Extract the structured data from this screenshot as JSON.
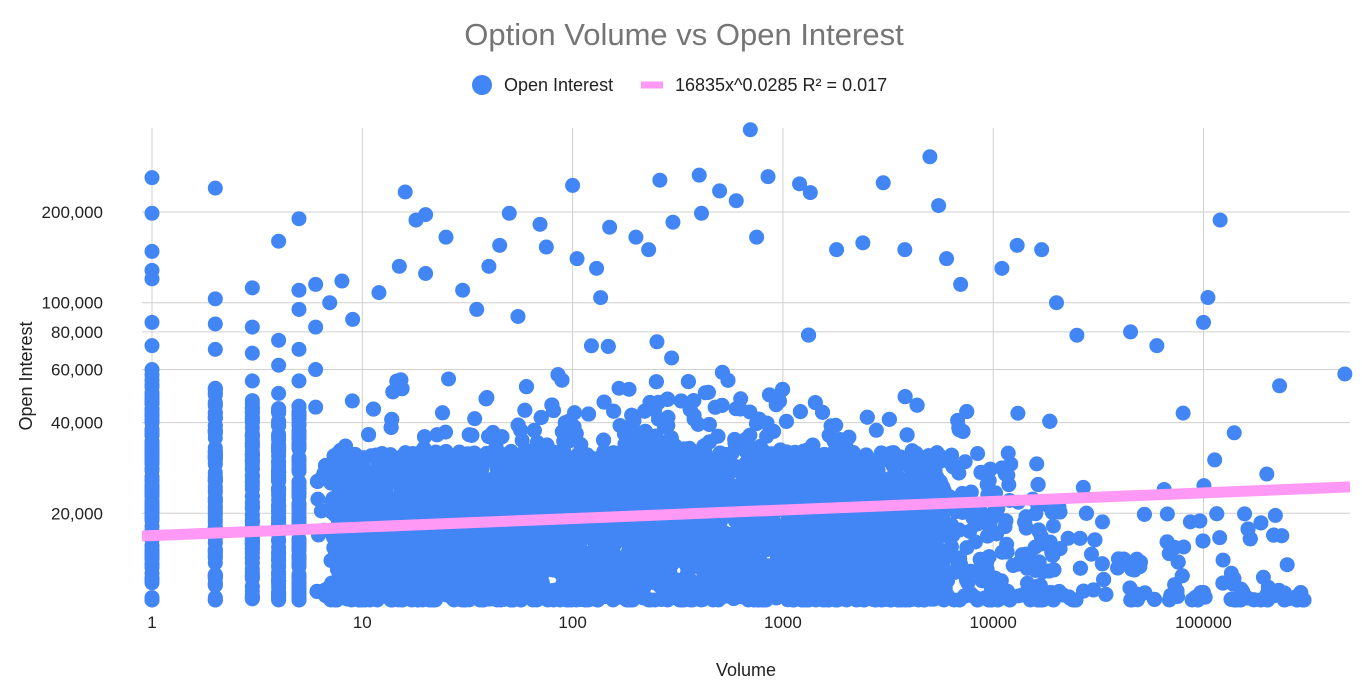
{
  "chart_data": {
    "type": "scatter",
    "title": "Option Volume vs Open Interest",
    "xlabel": "Volume",
    "ylabel": "Open Interest",
    "x_scale": "log",
    "y_scale": "log",
    "xlim": [
      1,
      500000
    ],
    "ylim": [
      10000,
      380000
    ],
    "x_ticks": [
      {
        "value": 1,
        "label": "1"
      },
      {
        "value": 10,
        "label": "10"
      },
      {
        "value": 100,
        "label": "100"
      },
      {
        "value": 1000,
        "label": "1000"
      },
      {
        "value": 10000,
        "label": "10000"
      },
      {
        "value": 100000,
        "label": "100000"
      }
    ],
    "y_ticks": [
      {
        "value": 20000,
        "label": "20,000"
      },
      {
        "value": 40000,
        "label": "40,000"
      },
      {
        "value": 60000,
        "label": "60,000"
      },
      {
        "value": 80000,
        "label": "80,000"
      },
      {
        "value": 100000,
        "label": "100,000"
      },
      {
        "value": 200000,
        "label": "200,000"
      }
    ],
    "grid": true,
    "legend_position": "top",
    "series": [
      {
        "name": "Open Interest",
        "color": "#4285f4",
        "points": [
          {
            "x": 1,
            "y": 260000
          },
          {
            "x": 1,
            "y": 198000
          },
          {
            "x": 1,
            "y": 148000
          },
          {
            "x": 1,
            "y": 128000
          },
          {
            "x": 1,
            "y": 120000
          },
          {
            "x": 1,
            "y": 86000
          },
          {
            "x": 1,
            "y": 72000
          },
          {
            "x": 1,
            "y": 60000
          },
          {
            "x": 1,
            "y": 48000
          },
          {
            "x": 1,
            "y": 38000
          },
          {
            "x": 1,
            "y": 30000
          },
          {
            "x": 1,
            "y": 24000
          },
          {
            "x": 1,
            "y": 19000
          },
          {
            "x": 1,
            "y": 15000
          },
          {
            "x": 1,
            "y": 12000
          },
          {
            "x": 1,
            "y": 10500
          },
          {
            "x": 2,
            "y": 240000
          },
          {
            "x": 2,
            "y": 103000
          },
          {
            "x": 2,
            "y": 85000
          },
          {
            "x": 2,
            "y": 70000
          },
          {
            "x": 2,
            "y": 52000
          },
          {
            "x": 2,
            "y": 42000
          },
          {
            "x": 2,
            "y": 33000
          },
          {
            "x": 2,
            "y": 26000
          },
          {
            "x": 2,
            "y": 20000
          },
          {
            "x": 2,
            "y": 16000
          },
          {
            "x": 2,
            "y": 12500
          },
          {
            "x": 2,
            "y": 10500
          },
          {
            "x": 3,
            "y": 112000
          },
          {
            "x": 3,
            "y": 83000
          },
          {
            "x": 3,
            "y": 68000
          },
          {
            "x": 3,
            "y": 55000
          },
          {
            "x": 3,
            "y": 45000
          },
          {
            "x": 3,
            "y": 36000
          },
          {
            "x": 3,
            "y": 28000
          },
          {
            "x": 3,
            "y": 21000
          },
          {
            "x": 3,
            "y": 16000
          },
          {
            "x": 3,
            "y": 12500
          },
          {
            "x": 3,
            "y": 10500
          },
          {
            "x": 4,
            "y": 160000
          },
          {
            "x": 4,
            "y": 75000
          },
          {
            "x": 4,
            "y": 62000
          },
          {
            "x": 4,
            "y": 50000
          },
          {
            "x": 4,
            "y": 40000
          },
          {
            "x": 4,
            "y": 31000
          },
          {
            "x": 4,
            "y": 24000
          },
          {
            "x": 4,
            "y": 18000
          },
          {
            "x": 4,
            "y": 14000
          },
          {
            "x": 4,
            "y": 11000
          },
          {
            "x": 5,
            "y": 190000
          },
          {
            "x": 5,
            "y": 110000
          },
          {
            "x": 5,
            "y": 95000
          },
          {
            "x": 5,
            "y": 70000
          },
          {
            "x": 5,
            "y": 55000
          },
          {
            "x": 5,
            "y": 43000
          },
          {
            "x": 5,
            "y": 33000
          },
          {
            "x": 5,
            "y": 25000
          },
          {
            "x": 5,
            "y": 19000
          },
          {
            "x": 5,
            "y": 14500
          },
          {
            "x": 5,
            "y": 11000
          },
          {
            "x": 6,
            "y": 115000
          },
          {
            "x": 6,
            "y": 83000
          },
          {
            "x": 6,
            "y": 60000
          },
          {
            "x": 6,
            "y": 45000
          },
          {
            "x": 7,
            "y": 100000
          },
          {
            "x": 8,
            "y": 118000
          },
          {
            "x": 9,
            "y": 88000
          },
          {
            "x": 12,
            "y": 108000
          },
          {
            "x": 15,
            "y": 132000
          },
          {
            "x": 16,
            "y": 233000
          },
          {
            "x": 18,
            "y": 188000
          },
          {
            "x": 20,
            "y": 196000
          },
          {
            "x": 20,
            "y": 125000
          },
          {
            "x": 25,
            "y": 165000
          },
          {
            "x": 30,
            "y": 110000
          },
          {
            "x": 35,
            "y": 95000
          },
          {
            "x": 40,
            "y": 132000
          },
          {
            "x": 45,
            "y": 155000
          },
          {
            "x": 50,
            "y": 198000
          },
          {
            "x": 55,
            "y": 90000
          },
          {
            "x": 70,
            "y": 182000
          },
          {
            "x": 75,
            "y": 153000
          },
          {
            "x": 100,
            "y": 245000
          },
          {
            "x": 105,
            "y": 140000
          },
          {
            "x": 130,
            "y": 130000
          },
          {
            "x": 150,
            "y": 178000
          },
          {
            "x": 200,
            "y": 165000
          },
          {
            "x": 230,
            "y": 150000
          },
          {
            "x": 260,
            "y": 255000
          },
          {
            "x": 300,
            "y": 185000
          },
          {
            "x": 400,
            "y": 265000
          },
          {
            "x": 410,
            "y": 198000
          },
          {
            "x": 500,
            "y": 235000
          },
          {
            "x": 600,
            "y": 218000
          },
          {
            "x": 700,
            "y": 375000
          },
          {
            "x": 750,
            "y": 165000
          },
          {
            "x": 850,
            "y": 262000
          },
          {
            "x": 1200,
            "y": 248000
          },
          {
            "x": 1350,
            "y": 232000
          },
          {
            "x": 1800,
            "y": 150000
          },
          {
            "x": 2400,
            "y": 158000
          },
          {
            "x": 3000,
            "y": 250000
          },
          {
            "x": 3800,
            "y": 150000
          },
          {
            "x": 5000,
            "y": 305000
          },
          {
            "x": 5500,
            "y": 210000
          },
          {
            "x": 6000,
            "y": 140000
          },
          {
            "x": 7000,
            "y": 115000
          },
          {
            "x": 11000,
            "y": 130000
          },
          {
            "x": 13000,
            "y": 155000
          },
          {
            "x": 17000,
            "y": 150000
          },
          {
            "x": 20000,
            "y": 100000
          },
          {
            "x": 25000,
            "y": 78000
          },
          {
            "x": 45000,
            "y": 80000
          },
          {
            "x": 60000,
            "y": 72000
          },
          {
            "x": 100000,
            "y": 86000
          },
          {
            "x": 105000,
            "y": 104000
          },
          {
            "x": 120000,
            "y": 188000
          },
          {
            "x": 140000,
            "y": 37000
          },
          {
            "x": 230000,
            "y": 53000
          },
          {
            "x": 250000,
            "y": 13500
          },
          {
            "x": 470000,
            "y": 58000
          },
          {
            "x": 200000,
            "y": 27000
          },
          {
            "x": 80000,
            "y": 43000
          },
          {
            "x": 65000,
            "y": 24000
          }
        ]
      },
      {
        "name": "16835x^0.0285 R² = 0.017",
        "color": "#ff99f5",
        "type": "trendline",
        "equation": {
          "a": 16835,
          "b": 0.0285
        }
      }
    ]
  }
}
